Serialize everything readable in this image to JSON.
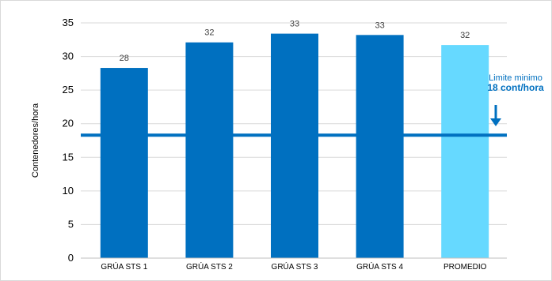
{
  "chart_data": {
    "type": "bar",
    "ylabel": "Contenedores/hora",
    "categories": [
      "GRÚA STS 1",
      "GRÚA STS 2",
      "GRÚA STS 3",
      "GRÚA STS 4",
      "PROMEDIO"
    ],
    "values": [
      28.3,
      32.1,
      33.4,
      33.2,
      31.7
    ],
    "data_labels": [
      "28",
      "32",
      "33",
      "33",
      "32"
    ],
    "bar_colors": [
      "#0070c0",
      "#0070c0",
      "#0070c0",
      "#0070c0",
      "#66d9ff"
    ],
    "ylim": [
      0,
      35
    ],
    "yticks": [
      0,
      5,
      10,
      15,
      20,
      25,
      30,
      35
    ],
    "grid": true,
    "reference_line": {
      "value": 18.3,
      "color": "#0070c0"
    },
    "annotation": {
      "line1": "Limite minimo",
      "line2": "18 cont/hora"
    }
  }
}
